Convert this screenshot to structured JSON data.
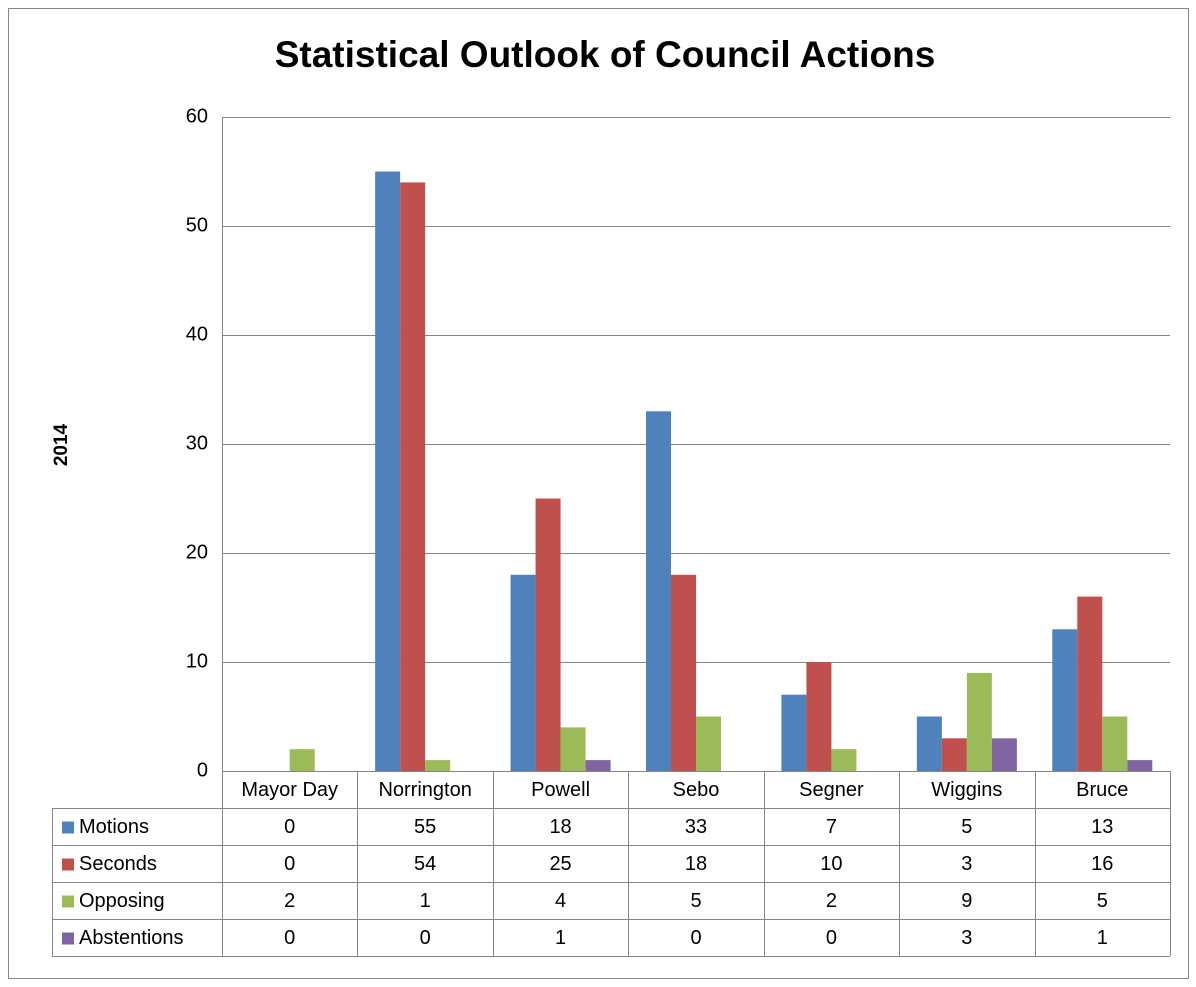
{
  "chart_data": {
    "type": "bar",
    "title": "Statistical Outlook of Council Actions",
    "y_label": "2014",
    "categories": [
      "Mayor Day",
      "Norrington",
      "Powell",
      "Sebo",
      "Segner",
      "Wiggins",
      "Bruce"
    ],
    "series": [
      {
        "name": "Motions",
        "color": "#4f81bd",
        "values": [
          0,
          55,
          18,
          33,
          7,
          5,
          13
        ]
      },
      {
        "name": "Seconds",
        "color": "#c0504d",
        "values": [
          0,
          54,
          25,
          18,
          10,
          3,
          16
        ]
      },
      {
        "name": "Opposing",
        "color": "#9bbb59",
        "values": [
          2,
          1,
          4,
          5,
          2,
          9,
          5
        ]
      },
      {
        "name": "Abstentions",
        "color": "#8064a2",
        "values": [
          0,
          0,
          1,
          0,
          0,
          3,
          1
        ]
      }
    ],
    "ylim": [
      0,
      60
    ],
    "yticks": [
      0,
      10,
      20,
      30,
      40,
      50,
      60
    ],
    "grid": true,
    "data_table": true
  }
}
